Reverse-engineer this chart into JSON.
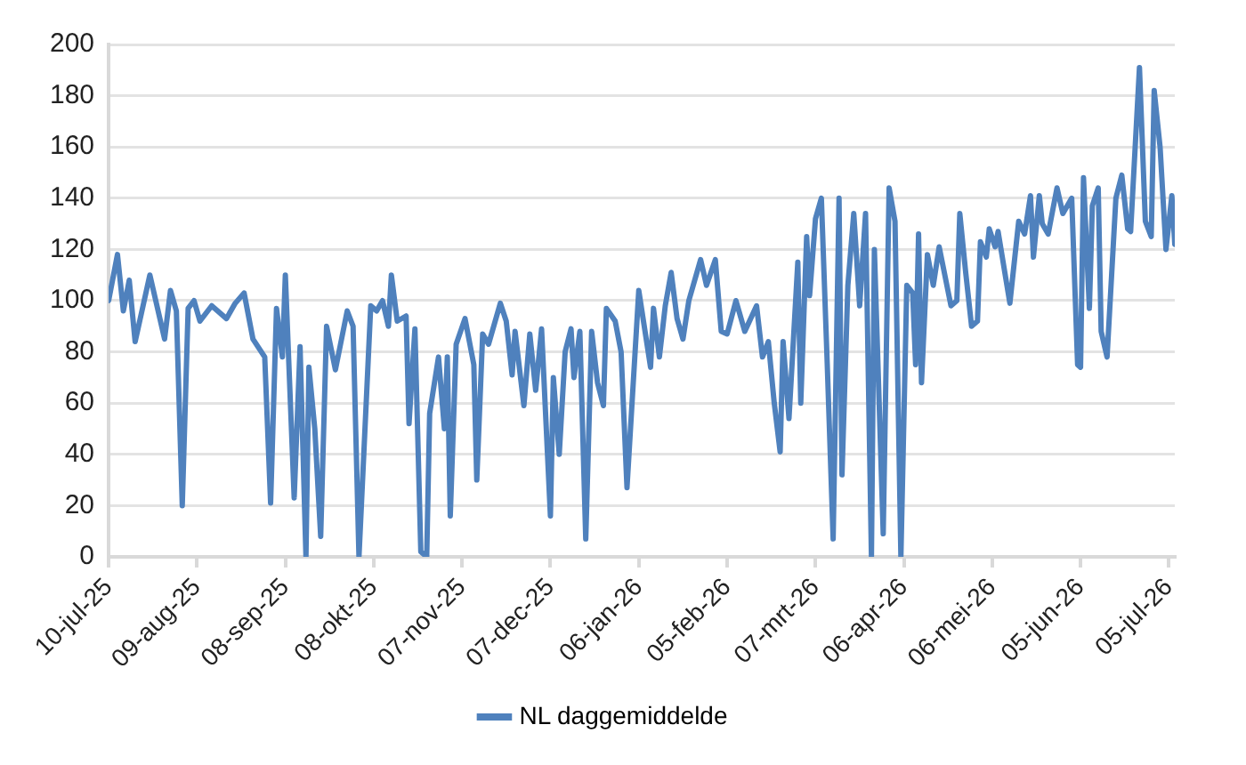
{
  "chart_data": {
    "type": "line",
    "legend": "bottom",
    "grid": "y",
    "marker": "none",
    "line_style": "solid",
    "xlim": [
      "2025-07-10",
      "2026-07-07"
    ],
    "xticks": [
      {
        "value": "2025-07-10",
        "label": "10-jul-25"
      },
      {
        "value": "2025-08-09",
        "label": "09-aug-25"
      },
      {
        "value": "2025-09-08",
        "label": "08-sep-25"
      },
      {
        "value": "2025-10-08",
        "label": "08-okt-25"
      },
      {
        "value": "2025-11-07",
        "label": "07-nov-25"
      },
      {
        "value": "2025-12-07",
        "label": "07-dec-25"
      },
      {
        "value": "2026-01-06",
        "label": "06-jan-26"
      },
      {
        "value": "2026-02-05",
        "label": "05-feb-26"
      },
      {
        "value": "2026-03-07",
        "label": "07-mrt-26"
      },
      {
        "value": "2026-04-06",
        "label": "06-apr-26"
      },
      {
        "value": "2026-05-06",
        "label": "06-mei-26"
      },
      {
        "value": "2026-06-05",
        "label": "05-jun-26"
      },
      {
        "value": "2026-07-05",
        "label": "05-jul-26"
      }
    ],
    "ylim": [
      0,
      200
    ],
    "yticks": [
      0,
      20,
      40,
      60,
      80,
      100,
      120,
      140,
      160,
      180,
      200
    ],
    "x": [
      "2025-07-10",
      "2025-07-13",
      "2025-07-15",
      "2025-07-17",
      "2025-07-19",
      "2025-07-24",
      "2025-07-29",
      "2025-07-31",
      "2025-08-02",
      "2025-08-04",
      "2025-08-06",
      "2025-08-08",
      "2025-08-10",
      "2025-08-14",
      "2025-08-19",
      "2025-08-22",
      "2025-08-25",
      "2025-08-28",
      "2025-09-01",
      "2025-09-03",
      "2025-09-05",
      "2025-09-07",
      "2025-09-08",
      "2025-09-11",
      "2025-09-13",
      "2025-09-15",
      "2025-09-16",
      "2025-09-18",
      "2025-09-20",
      "2025-09-22",
      "2025-09-25",
      "2025-09-29",
      "2025-10-01",
      "2025-10-03",
      "2025-10-07",
      "2025-10-09",
      "2025-10-11",
      "2025-10-13",
      "2025-10-14",
      "2025-10-16",
      "2025-10-19",
      "2025-10-20",
      "2025-10-22",
      "2025-10-24",
      "2025-10-26",
      "2025-10-27",
      "2025-10-30",
      "2025-11-01",
      "2025-11-02",
      "2025-11-03",
      "2025-11-05",
      "2025-11-08",
      "2025-11-11",
      "2025-11-12",
      "2025-11-14",
      "2025-11-16",
      "2025-11-20",
      "2025-11-22",
      "2025-11-24",
      "2025-11-25",
      "2025-11-28",
      "2025-11-30",
      "2025-12-02",
      "2025-12-04",
      "2025-12-07",
      "2025-12-08",
      "2025-12-10",
      "2025-12-12",
      "2025-12-14",
      "2025-12-15",
      "2025-12-17",
      "2025-12-19",
      "2025-12-21",
      "2025-12-23",
      "2025-12-25",
      "2025-12-26",
      "2025-12-29",
      "2025-12-31",
      "2026-01-02",
      "2026-01-06",
      "2026-01-10",
      "2026-01-11",
      "2026-01-13",
      "2026-01-15",
      "2026-01-17",
      "2026-01-19",
      "2026-01-21",
      "2026-01-23",
      "2026-01-27",
      "2026-01-29",
      "2026-02-01",
      "2026-02-03",
      "2026-02-05",
      "2026-02-08",
      "2026-02-11",
      "2026-02-15",
      "2026-02-17",
      "2026-02-19",
      "2026-02-21",
      "2026-02-23",
      "2026-02-24",
      "2026-02-26",
      "2026-03-01",
      "2026-03-02",
      "2026-03-04",
      "2026-03-05",
      "2026-03-07",
      "2026-03-09",
      "2026-03-11",
      "2026-03-13",
      "2026-03-15",
      "2026-03-16",
      "2026-03-18",
      "2026-03-20",
      "2026-03-22",
      "2026-03-24",
      "2026-03-26",
      "2026-03-27",
      "2026-03-30",
      "2026-04-01",
      "2026-04-03",
      "2026-04-05",
      "2026-04-07",
      "2026-04-09",
      "2026-04-10",
      "2026-04-11",
      "2026-04-12",
      "2026-04-14",
      "2026-04-16",
      "2026-04-18",
      "2026-04-22",
      "2026-04-24",
      "2026-04-25",
      "2026-04-27",
      "2026-04-29",
      "2026-05-01",
      "2026-05-02",
      "2026-05-04",
      "2026-05-05",
      "2026-05-07",
      "2026-05-08",
      "2026-05-12",
      "2026-05-15",
      "2026-05-17",
      "2026-05-19",
      "2026-05-20",
      "2026-05-22",
      "2026-05-23",
      "2026-05-25",
      "2026-05-28",
      "2026-05-30",
      "2026-06-02",
      "2026-06-04",
      "2026-06-05",
      "2026-06-06",
      "2026-06-08",
      "2026-06-09",
      "2026-06-11",
      "2026-06-12",
      "2026-06-14",
      "2026-06-17",
      "2026-06-19",
      "2026-06-21",
      "2026-06-22",
      "2026-06-25",
      "2026-06-27",
      "2026-06-29",
      "2026-06-30",
      "2026-07-02",
      "2026-07-04",
      "2026-07-06",
      "2026-07-07"
    ],
    "series": [
      {
        "name": "NL daggemiddelde",
        "color": "#4f81bd",
        "values": [
          100,
          118,
          96,
          108,
          84,
          110,
          85,
          104,
          96,
          20,
          97,
          100,
          92,
          98,
          93,
          99,
          103,
          85,
          78,
          21,
          97,
          78,
          110,
          23,
          82,
          0,
          74,
          50,
          8,
          90,
          73,
          96,
          90,
          0,
          98,
          96,
          100,
          90,
          110,
          92,
          94,
          52,
          89,
          2,
          0,
          56,
          78,
          50,
          78,
          16,
          83,
          93,
          75,
          30,
          87,
          83,
          99,
          92,
          71,
          88,
          59,
          87,
          65,
          89,
          16,
          70,
          40,
          80,
          89,
          70,
          88,
          7,
          88,
          68,
          59,
          97,
          92,
          80,
          27,
          104,
          74,
          97,
          78,
          98,
          111,
          93,
          85,
          100,
          116,
          106,
          116,
          88,
          87,
          100,
          88,
          98,
          78,
          84,
          60,
          41,
          84,
          54,
          115,
          60,
          125,
          102,
          132,
          140,
          75,
          7,
          140,
          32,
          106,
          134,
          98,
          134,
          0,
          120,
          9,
          144,
          131,
          0,
          106,
          103,
          75,
          126,
          68,
          118,
          106,
          121,
          98,
          100,
          134,
          111,
          90,
          92,
          123,
          117,
          128,
          121,
          127,
          99,
          131,
          126,
          141,
          117,
          141,
          130,
          126,
          144,
          134,
          140,
          75,
          74,
          148,
          97,
          137,
          144,
          88,
          78,
          140,
          149,
          128,
          127,
          191,
          131,
          125,
          182,
          160,
          120,
          141,
          122
        ]
      }
    ]
  }
}
